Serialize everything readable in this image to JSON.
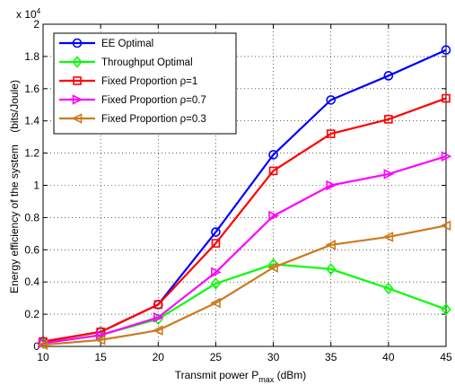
{
  "chart_data": {
    "type": "line",
    "xlabel": "Transmit power P",
    "xlabel_sub": "max",
    "xlabel_unit": " (dBm)",
    "ylabel": "Energy efficiency of the system    (bits/Joule)",
    "y_exponent_label": "x 10",
    "y_exponent_power": "4",
    "x": [
      10,
      15,
      20,
      25,
      30,
      35,
      40,
      45
    ],
    "xlim": [
      10,
      45
    ],
    "ylim": [
      0,
      2
    ],
    "x_ticks": [
      10,
      15,
      20,
      25,
      30,
      35,
      40,
      45
    ],
    "y_ticks": [
      0,
      0.2,
      0.4,
      0.6,
      0.8,
      1,
      1.2,
      1.4,
      1.6,
      1.8,
      2
    ],
    "grid": true,
    "legend_position": "top-left",
    "series": [
      {
        "name": "EE Optimal",
        "color": "#0000ff",
        "marker": "circle",
        "values": [
          0.03,
          0.09,
          0.26,
          0.71,
          1.19,
          1.53,
          1.68,
          1.84
        ]
      },
      {
        "name": "Throughput Optimal",
        "color": "#00ff00",
        "marker": "diamond",
        "values": [
          0.02,
          0.07,
          0.17,
          0.39,
          0.51,
          0.48,
          0.36,
          0.23
        ]
      },
      {
        "name": "Fixed Proportion ρ=1",
        "color": "#ff0000",
        "marker": "square",
        "values": [
          0.03,
          0.09,
          0.26,
          0.64,
          1.09,
          1.32,
          1.41,
          1.54
        ]
      },
      {
        "name": "Fixed Proportion ρ=0.7",
        "color": "#ff00ff",
        "marker": "triangle-right",
        "values": [
          0.02,
          0.07,
          0.18,
          0.46,
          0.81,
          1.0,
          1.07,
          1.18
        ]
      },
      {
        "name": "Fixed Proportion ρ=0.3",
        "color": "#cc7a1f",
        "marker": "triangle-left",
        "values": [
          0.01,
          0.04,
          0.1,
          0.27,
          0.49,
          0.63,
          0.68,
          0.75
        ]
      }
    ]
  }
}
